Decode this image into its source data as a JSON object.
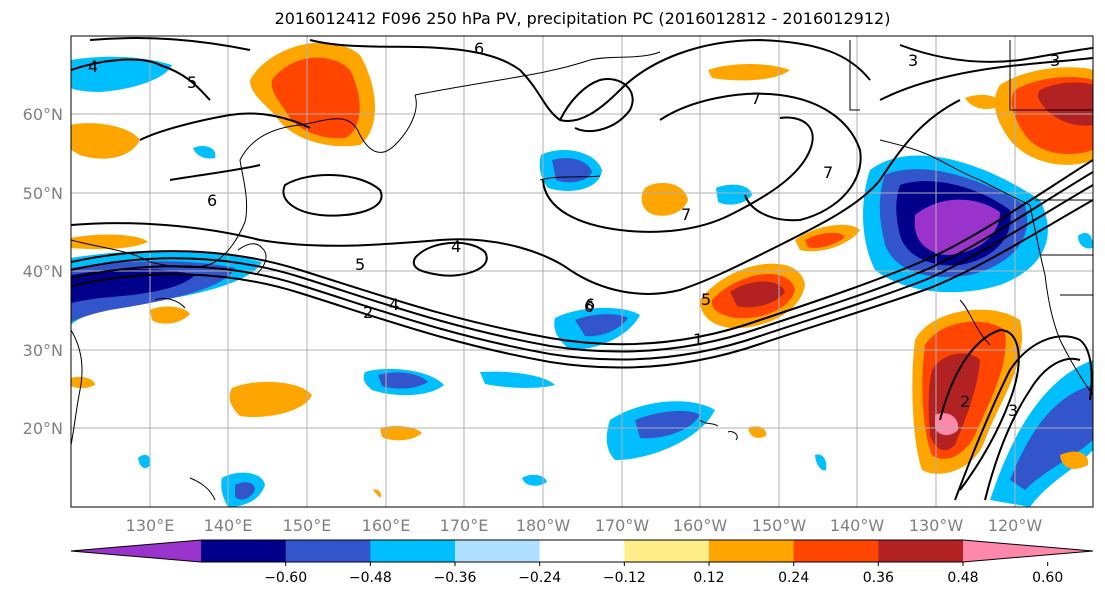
{
  "title": "2016012412 F096 250 hPa PV, precipitation PC (2016012812 - 2016012912)",
  "map": {
    "lat_ticks": [
      "60°N",
      "50°N",
      "40°N",
      "30°N",
      "20°N"
    ],
    "lon_ticks": [
      "130°E",
      "140°E",
      "150°E",
      "160°E",
      "170°E",
      "180°W",
      "170°W",
      "160°W",
      "150°W",
      "140°W",
      "130°W",
      "120°W"
    ],
    "contour_labels": [
      "6",
      "5",
      "4",
      "6",
      "6",
      "5",
      "4",
      "7",
      "7",
      "7",
      "3",
      "3",
      "2",
      "4",
      "6",
      "1",
      "5",
      "2",
      "3"
    ]
  },
  "colorbar": {
    "colors": [
      "#9933cc",
      "#00008b",
      "#3355cc",
      "#00bfff",
      "#b0e0ff",
      "#ffffff",
      "#ffee88",
      "#ffa500",
      "#ff4500",
      "#b22222",
      "#ff88aa"
    ],
    "tick_labels": [
      "−0.60",
      "−0.48",
      "−0.36",
      "−0.24",
      "−0.12",
      "0.12",
      "0.24",
      "0.36",
      "0.48",
      "0.60"
    ]
  }
}
